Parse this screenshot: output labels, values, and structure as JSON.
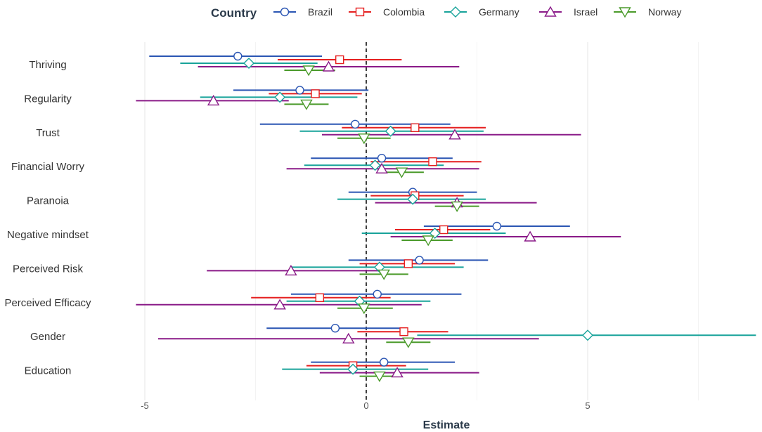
{
  "chart_data": {
    "type": "forest",
    "title": "",
    "xlabel": "Estimate",
    "ylabel": "",
    "xlim": [
      -5.2,
      8.8
    ],
    "xticks": [
      -5,
      0,
      5
    ],
    "reference_line": 0,
    "legend_title": "Country",
    "legend_position": "top",
    "categories": [
      "Thriving",
      "Regularity",
      "Trust",
      "Financial Worry",
      "Paranoia",
      "Negative mindset",
      "Perceived Risk",
      "Perceived Efficacy",
      "Gender",
      "Education"
    ],
    "series": [
      {
        "name": "Brazil",
        "color": "#2a55b3",
        "marker": "circle",
        "estimate": [
          -2.9,
          -1.5,
          -0.25,
          0.35,
          1.05,
          2.95,
          1.2,
          0.25,
          -0.7,
          0.4
        ],
        "lower": [
          -4.9,
          -3.0,
          -2.4,
          -1.25,
          -0.4,
          1.3,
          -0.4,
          -1.7,
          -2.25,
          -1.25
        ],
        "upper": [
          -1.0,
          0.05,
          1.9,
          1.95,
          2.5,
          4.6,
          2.75,
          2.15,
          0.85,
          2.0
        ]
      },
      {
        "name": "Colombia",
        "color": "#e51f1f",
        "marker": "square",
        "estimate": [
          -0.6,
          -1.15,
          1.1,
          1.5,
          1.1,
          1.75,
          0.95,
          -1.05,
          0.85,
          -0.3
        ],
        "lower": [
          -2.0,
          -2.2,
          -0.55,
          0.1,
          0.1,
          0.65,
          -0.15,
          -2.6,
          -0.2,
          -1.35
        ],
        "upper": [
          0.8,
          -0.1,
          2.7,
          2.6,
          2.2,
          2.8,
          2.0,
          0.55,
          1.85,
          0.9
        ]
      },
      {
        "name": "Germany",
        "color": "#18a39a",
        "marker": "diamond",
        "estimate": [
          -2.65,
          -1.95,
          0.55,
          0.2,
          1.05,
          1.55,
          0.3,
          -0.15,
          5.0,
          -0.3
        ],
        "lower": [
          -4.2,
          -3.75,
          -1.5,
          -1.4,
          -0.65,
          -0.1,
          -1.7,
          -1.8,
          1.15,
          -1.9
        ],
        "upper": [
          -1.1,
          -0.2,
          2.65,
          1.75,
          2.7,
          3.15,
          2.2,
          1.45,
          8.8,
          1.4
        ]
      },
      {
        "name": "Israel",
        "color": "#8a1a88",
        "marker": "triangle-up",
        "estimate": [
          -0.85,
          -3.45,
          2.0,
          0.35,
          2.05,
          3.7,
          -1.7,
          -1.95,
          -0.4,
          0.7
        ],
        "lower": [
          -3.8,
          -5.2,
          -1.0,
          -1.8,
          0.2,
          0.55,
          -3.6,
          -5.2,
          -4.7,
          -1.05
        ],
        "upper": [
          2.1,
          -1.75,
          4.85,
          2.55,
          3.85,
          5.75,
          0.4,
          1.25,
          3.9,
          2.55
        ]
      },
      {
        "name": "Norway",
        "color": "#4a9a2a",
        "marker": "triangle-down",
        "estimate": [
          -1.3,
          -1.35,
          -0.05,
          0.8,
          2.05,
          1.4,
          0.4,
          -0.05,
          0.95,
          0.3
        ],
        "lower": [
          -1.85,
          -1.85,
          -0.65,
          0.3,
          1.55,
          0.8,
          -0.15,
          -0.65,
          0.45,
          -0.15
        ],
        "upper": [
          -0.7,
          -0.85,
          0.55,
          1.3,
          2.55,
          1.95,
          0.95,
          0.6,
          1.45,
          0.8
        ]
      }
    ]
  }
}
